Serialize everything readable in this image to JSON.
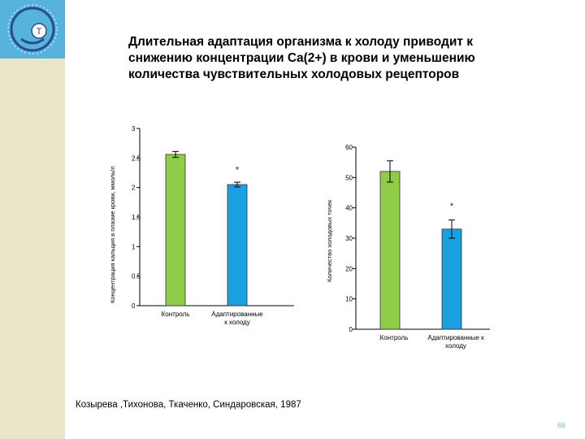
{
  "title": "Длительная адаптация организма к холоду приводит к снижению концентрации Ca(2+) в крови и уменьшению количества чувствительных холодовых рецепторов",
  "citation": "Козырева ,Тихонова, Ткаченко, Синдаровская, 1987",
  "page_number": "66",
  "logo_text": "T",
  "colors": {
    "control": "#8fcc4a",
    "adapted": "#1ba1e2",
    "side_strip": "#e9e5c9",
    "logo_bg": "#56b4dc"
  },
  "chart_data": [
    {
      "type": "bar",
      "ylabel": "Концентрация кальция в плазме крови, ммоль/л",
      "xlabel": "",
      "categories": [
        "Контроль",
        "Адаптированные к холоду"
      ],
      "category_lines": [
        [
          "Контроль"
        ],
        [
          "Адаптированные",
          "к холоду"
        ]
      ],
      "values": [
        2.56,
        2.05
      ],
      "errors": [
        0.05,
        0.04
      ],
      "ylim": [
        0,
        3
      ],
      "yticks": [
        0,
        0.5,
        1,
        1.5,
        2,
        2.5,
        3
      ],
      "ytick_labels": [
        "0",
        "0.5",
        "1",
        "1.5",
        "2",
        "2.5",
        "3"
      ],
      "significance": [
        "",
        "*"
      ]
    },
    {
      "type": "bar",
      "ylabel": "Количество холодовых точек",
      "xlabel": "",
      "categories": [
        "Контроль",
        "Адаптированные к холоду"
      ],
      "category_lines": [
        [
          "Контроль"
        ],
        [
          "Адаптированные к",
          "холоду"
        ]
      ],
      "values": [
        52,
        33
      ],
      "errors": [
        3.5,
        3
      ],
      "ylim": [
        0,
        60
      ],
      "yticks": [
        0,
        10,
        20,
        30,
        40,
        50,
        60
      ],
      "ytick_labels": [
        "0",
        "10",
        "20",
        "30",
        "40",
        "50",
        "60"
      ],
      "significance": [
        "",
        "*"
      ]
    }
  ]
}
